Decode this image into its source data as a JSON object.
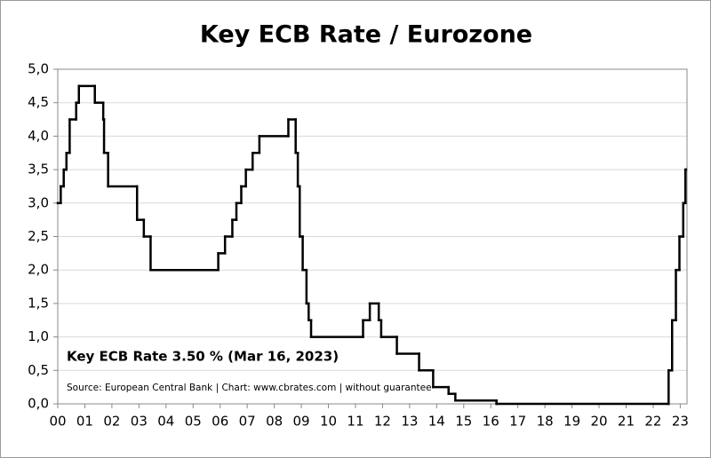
{
  "chart_data": {
    "type": "step-line",
    "title": "Key ECB Rate / Eurozone",
    "annotations": [
      "Key ECB Rate 3.50 % (Mar 16, 2023)",
      "Source: European Central Bank | Chart: www.cbrates.com | without guarantee"
    ],
    "x": [
      0,
      0.11,
      0.22,
      0.32,
      0.44,
      0.68,
      0.78,
      1.37,
      1.68,
      1.71,
      1.86,
      2.93,
      3.18,
      3.43,
      5.93,
      6.18,
      6.45,
      6.6,
      6.78,
      6.95,
      7.2,
      7.45,
      8.52,
      8.79,
      8.87,
      8.94,
      9.05,
      9.19,
      9.27,
      9.36,
      11.28,
      11.53,
      11.86,
      11.95,
      12.53,
      13.35,
      13.87,
      14.44,
      14.69,
      16.21,
      22.57,
      22.7,
      22.84,
      22.97,
      23.11,
      23.19,
      23.21
    ],
    "series": [
      {
        "color": "#000000",
        "values": [
          3.0,
          3.25,
          3.5,
          3.75,
          4.25,
          4.5,
          4.75,
          4.5,
          4.25,
          3.75,
          3.25,
          2.75,
          2.5,
          2.0,
          2.25,
          2.5,
          2.75,
          3.0,
          3.25,
          3.5,
          3.75,
          4.0,
          4.25,
          3.75,
          3.25,
          2.5,
          2.0,
          1.5,
          1.25,
          1.0,
          1.25,
          1.5,
          1.25,
          1.0,
          0.75,
          0.5,
          0.25,
          0.15,
          0.05,
          0.0,
          0.5,
          1.25,
          2.0,
          2.5,
          3.0,
          3.5,
          3.5
        ]
      }
    ],
    "xlim": [
      0,
      23.25
    ],
    "ylim": [
      0,
      5
    ],
    "xticks": [
      {
        "value": 0,
        "label": "00"
      },
      {
        "value": 1,
        "label": "01"
      },
      {
        "value": 2,
        "label": "02"
      },
      {
        "value": 3,
        "label": "03"
      },
      {
        "value": 4,
        "label": "04"
      },
      {
        "value": 5,
        "label": "05"
      },
      {
        "value": 6,
        "label": "06"
      },
      {
        "value": 7,
        "label": "07"
      },
      {
        "value": 8,
        "label": "08"
      },
      {
        "value": 9,
        "label": "09"
      },
      {
        "value": 10,
        "label": "10"
      },
      {
        "value": 11,
        "label": "11"
      },
      {
        "value": 12,
        "label": "12"
      },
      {
        "value": 13,
        "label": "13"
      },
      {
        "value": 14,
        "label": "14"
      },
      {
        "value": 15,
        "label": "15"
      },
      {
        "value": 16,
        "label": "16"
      },
      {
        "value": 17,
        "label": "17"
      },
      {
        "value": 18,
        "label": "18"
      },
      {
        "value": 19,
        "label": "19"
      },
      {
        "value": 20,
        "label": "20"
      },
      {
        "value": 21,
        "label": "21"
      },
      {
        "value": 22,
        "label": "22"
      },
      {
        "value": 23,
        "label": "23"
      }
    ],
    "yticks": [
      {
        "value": 0,
        "label": "0,0"
      },
      {
        "value": 0.5,
        "label": "0,5"
      },
      {
        "value": 1,
        "label": "1,0"
      },
      {
        "value": 1.5,
        "label": "1,5"
      },
      {
        "value": 2,
        "label": "2,0"
      },
      {
        "value": 2.5,
        "label": "2,5"
      },
      {
        "value": 3,
        "label": "3,0"
      },
      {
        "value": 3.5,
        "label": "3,5"
      },
      {
        "value": 4,
        "label": "4,0"
      },
      {
        "value": 4.5,
        "label": "4,5"
      },
      {
        "value": 5,
        "label": "5,0"
      }
    ],
    "grid": true
  }
}
